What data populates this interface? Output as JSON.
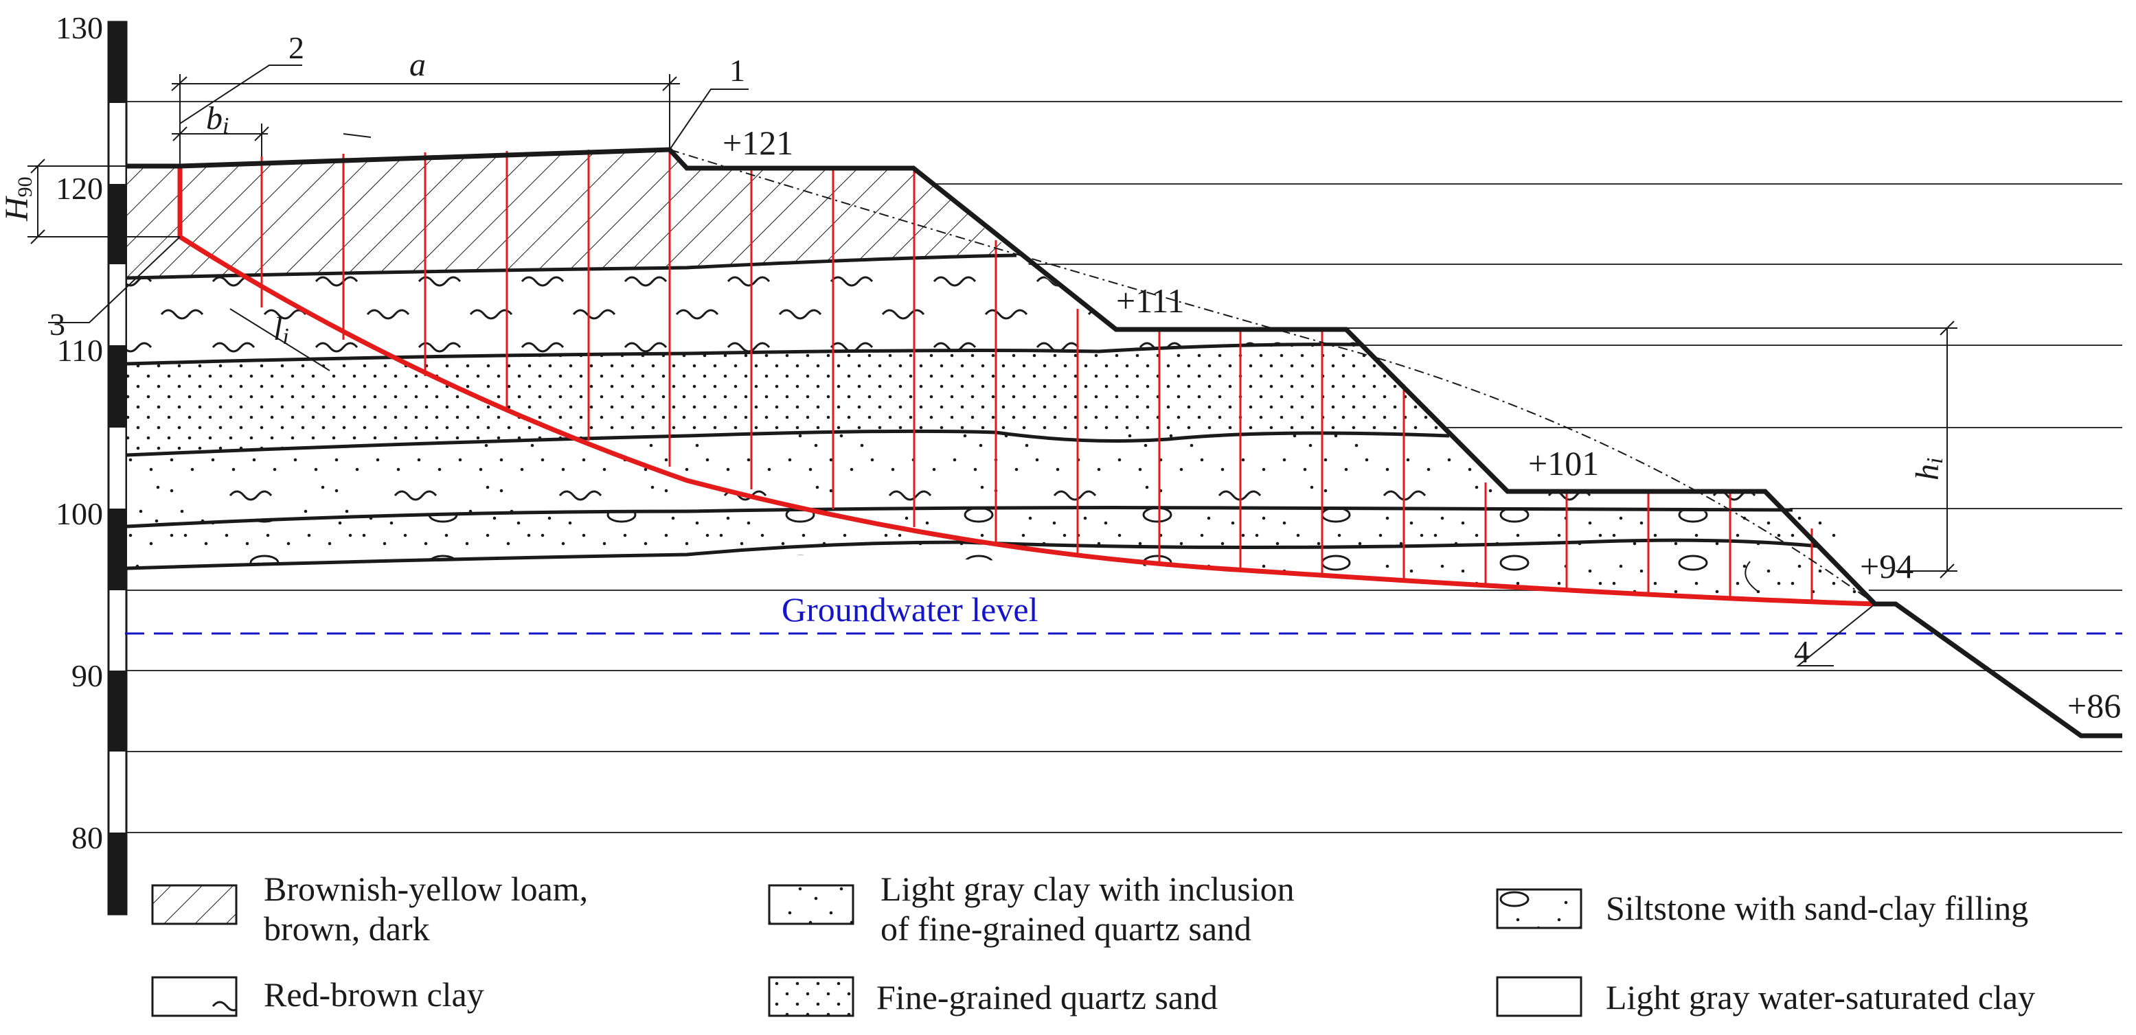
{
  "y_axis": {
    "ticks": [
      "130",
      "120",
      "110",
      "100",
      "90",
      "80"
    ]
  },
  "elevations": [
    "+121",
    "+111",
    "+101",
    "+94",
    "+86"
  ],
  "callouts": [
    "1",
    "2",
    "3",
    "4"
  ],
  "dimension_labels": {
    "a": "a",
    "b": "b",
    "b_sub": "i",
    "l": "l",
    "l_sub": "i",
    "h": "h",
    "h_sub": "i",
    "H": "H",
    "H_sub": "90"
  },
  "groundwater_label": "Groundwater level",
  "legend": [
    {
      "pattern": "hatch",
      "lines": [
        "Brownish-yellow loam,",
        "brown, dark"
      ]
    },
    {
      "pattern": "clay-sand",
      "lines": [
        "Light gray clay with inclusion",
        "of fine-grained quartz sand"
      ]
    },
    {
      "pattern": "siltstone",
      "lines": [
        "Siltstone with sand-clay filling"
      ]
    },
    {
      "pattern": "redclay",
      "lines": [
        "Red-brown clay"
      ]
    },
    {
      "pattern": "sand",
      "lines": [
        "Fine-grained quartz sand"
      ]
    },
    {
      "pattern": "plain",
      "lines": [
        "Light gray water-saturated clay"
      ]
    }
  ],
  "colors": {
    "ink": "#1a1a1a",
    "slip_surface": "#e31b1b",
    "groundwater": "#1414c8",
    "grid": "#333333"
  }
}
